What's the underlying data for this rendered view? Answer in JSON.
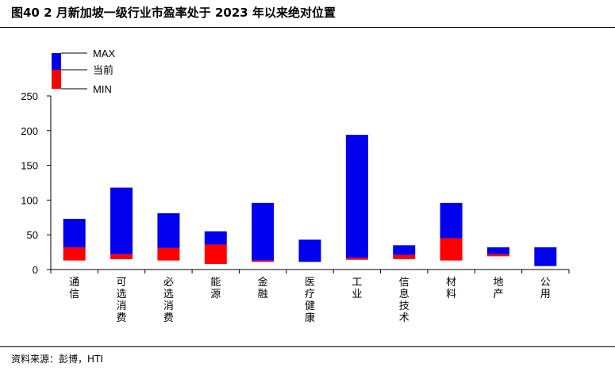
{
  "header": {
    "title": "图40 2 月新加坡一级行业市盈率处于 2023 年以来绝对位置"
  },
  "footer": {
    "source": "资料来源：彭博，HTI"
  },
  "colors": {
    "max_series": "#0000ee",
    "current_series": "#ff0000",
    "axis": "#000000"
  },
  "chart_data": {
    "type": "bar",
    "subtype": "floating-range",
    "legend": {
      "position": "top-left",
      "entries": [
        "MAX",
        "当前",
        "MIN"
      ]
    },
    "categories": [
      "通信",
      "可选消费",
      "必选消费",
      "能源",
      "金融",
      "医疗健康",
      "工业",
      "信息技术",
      "材料",
      "地产",
      "公用"
    ],
    "min": [
      13,
      15,
      13,
      8,
      11,
      11,
      14,
      15,
      13,
      19,
      5
    ],
    "current": [
      32,
      22,
      31,
      36,
      13,
      11,
      17,
      21,
      45,
      22,
      5
    ],
    "max": [
      73,
      118,
      81,
      55,
      96,
      43,
      194,
      35,
      96,
      32,
      32
    ],
    "ylim": [
      0,
      250
    ],
    "yticks": [
      0,
      50,
      100,
      150,
      200,
      250
    ],
    "grid": false
  }
}
